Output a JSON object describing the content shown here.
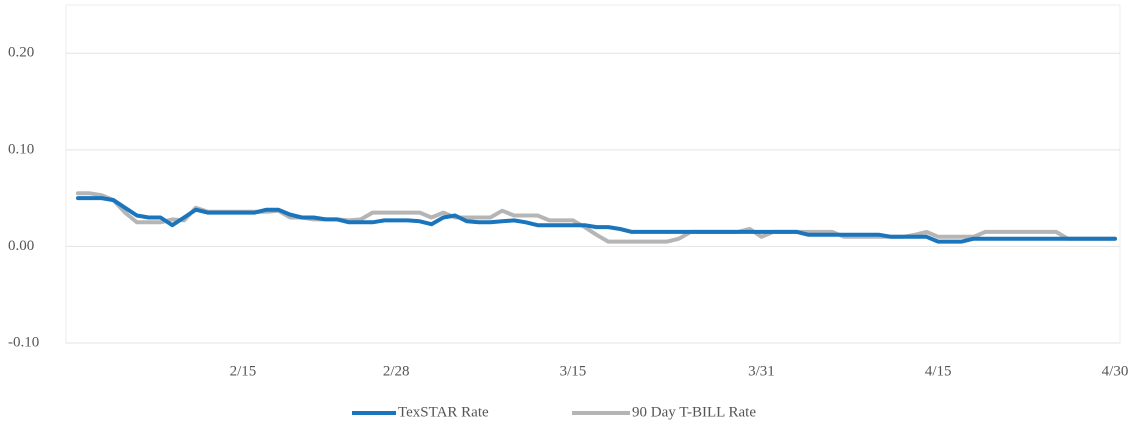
{
  "chart_data": {
    "type": "line",
    "categories": [
      null,
      null,
      null,
      null,
      null,
      null,
      null,
      null,
      null,
      null,
      null,
      null,
      null,
      null,
      "2/15",
      null,
      null,
      null,
      null,
      null,
      null,
      null,
      null,
      null,
      null,
      null,
      null,
      "2/28",
      null,
      null,
      null,
      null,
      null,
      null,
      null,
      null,
      null,
      null,
      null,
      null,
      null,
      null,
      "3/15",
      null,
      null,
      null,
      null,
      null,
      null,
      null,
      null,
      null,
      null,
      null,
      null,
      null,
      null,
      null,
      "3/31",
      null,
      null,
      null,
      null,
      null,
      null,
      null,
      null,
      null,
      null,
      null,
      null,
      null,
      null,
      "4/15",
      null,
      null,
      null,
      null,
      null,
      null,
      null,
      null,
      null,
      null,
      null,
      null,
      null,
      null,
      "4/30"
    ],
    "series": [
      {
        "name": "TexSTAR Rate",
        "color": "#1b75bc",
        "values": [
          0.05,
          0.05,
          0.05,
          0.048,
          0.04,
          0.032,
          0.03,
          0.03,
          0.022,
          0.03,
          0.038,
          0.035,
          0.035,
          0.035,
          0.035,
          0.035,
          0.038,
          0.038,
          0.033,
          0.03,
          0.03,
          0.028,
          0.028,
          0.025,
          0.025,
          0.025,
          0.027,
          0.027,
          0.027,
          0.026,
          0.023,
          0.03,
          0.032,
          0.026,
          0.025,
          0.025,
          0.026,
          0.027,
          0.025,
          0.022,
          0.022,
          0.022,
          0.022,
          0.022,
          0.02,
          0.02,
          0.018,
          0.015,
          0.015,
          0.015,
          0.015,
          0.015,
          0.015,
          0.015,
          0.015,
          0.015,
          0.015,
          0.015,
          0.015,
          0.015,
          0.015,
          0.015,
          0.012,
          0.012,
          0.012,
          0.012,
          0.012,
          0.012,
          0.012,
          0.01,
          0.01,
          0.01,
          0.01,
          0.005,
          0.005,
          0.005,
          0.008,
          0.008,
          0.008,
          0.008,
          0.008,
          0.008,
          0.008,
          0.008,
          0.008,
          0.008,
          0.008,
          0.008,
          0.008
        ]
      },
      {
        "name": "90 Day T-BILL Rate",
        "color": "#b5b5b5",
        "values": [
          0.055,
          0.055,
          0.053,
          0.048,
          0.035,
          0.025,
          0.025,
          0.025,
          0.028,
          0.027,
          0.04,
          0.036,
          0.036,
          0.036,
          0.036,
          0.036,
          0.036,
          0.037,
          0.03,
          0.03,
          0.028,
          0.028,
          0.028,
          0.027,
          0.028,
          0.035,
          0.035,
          0.035,
          0.035,
          0.035,
          0.03,
          0.035,
          0.03,
          0.03,
          0.03,
          0.03,
          0.037,
          0.032,
          0.032,
          0.032,
          0.027,
          0.027,
          0.027,
          0.02,
          0.012,
          0.005,
          0.005,
          0.005,
          0.005,
          0.005,
          0.005,
          0.008,
          0.015,
          0.015,
          0.015,
          0.015,
          0.015,
          0.018,
          0.01,
          0.015,
          0.015,
          0.015,
          0.015,
          0.015,
          0.015,
          0.01,
          0.01,
          0.01,
          0.01,
          0.01,
          0.01,
          0.012,
          0.015,
          0.01,
          0.01,
          0.01,
          0.01,
          0.015,
          0.015,
          0.015,
          0.015,
          0.015,
          0.015,
          0.015,
          0.008,
          0.008,
          0.008,
          0.008,
          0.008
        ]
      }
    ],
    "ylim": [
      -0.1,
      0.25
    ],
    "yticks": [
      {
        "value": -0.1,
        "label": "-0.10"
      },
      {
        "value": 0,
        "label": "0.00"
      },
      {
        "value": 0.1,
        "label": "0.10"
      },
      {
        "value": 0.2,
        "label": "0.20"
      }
    ],
    "grid": true,
    "legend": "bottom"
  }
}
